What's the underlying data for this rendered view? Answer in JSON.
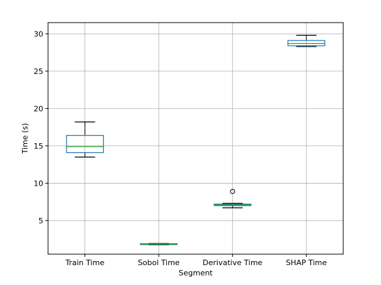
{
  "chart_data": {
    "type": "box",
    "title": "",
    "xlabel": "Segment",
    "ylabel": "Time (s)",
    "ylim": [
      0.5,
      31.5
    ],
    "yticks": [
      5,
      10,
      15,
      20,
      25,
      30
    ],
    "grid": true,
    "categories": [
      "Train Time",
      "Sobol Time",
      "Derivative Time",
      "SHAP Time"
    ],
    "boxes": [
      {
        "whisker_low": 13.5,
        "q1": 14.1,
        "median": 14.9,
        "q3": 16.4,
        "whisker_high": 18.2,
        "outliers": []
      },
      {
        "whisker_low": 1.75,
        "q1": 1.78,
        "median": 1.83,
        "q3": 1.9,
        "whisker_high": 1.93,
        "outliers": []
      },
      {
        "whisker_low": 6.7,
        "q1": 7.0,
        "median": 7.1,
        "q3": 7.2,
        "whisker_high": 7.3,
        "outliers": [
          8.9
        ]
      },
      {
        "whisker_low": 28.3,
        "q1": 28.4,
        "median": 28.7,
        "q3": 29.1,
        "whisker_high": 29.8,
        "outliers": []
      }
    ],
    "colors": {
      "box": "#1f77b4",
      "median": "#2ca02c",
      "whisker": "#000000",
      "grid": "#b0b0b0"
    }
  }
}
